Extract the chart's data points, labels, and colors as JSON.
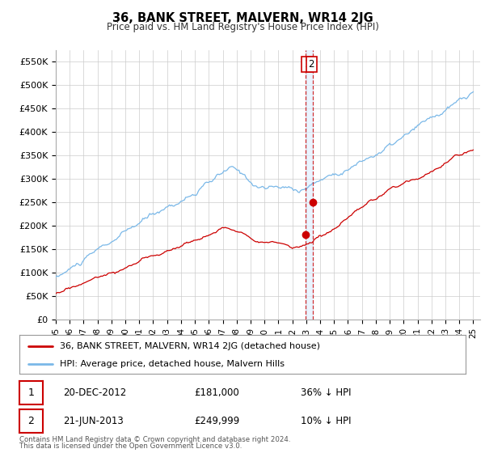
{
  "title": "36, BANK STREET, MALVERN, WR14 2JG",
  "subtitle": "Price paid vs. HM Land Registry's House Price Index (HPI)",
  "ylabel_ticks": [
    "£0",
    "£50K",
    "£100K",
    "£150K",
    "£200K",
    "£250K",
    "£300K",
    "£350K",
    "£400K",
    "£450K",
    "£500K",
    "£550K"
  ],
  "ytick_values": [
    0,
    50000,
    100000,
    150000,
    200000,
    250000,
    300000,
    350000,
    400000,
    450000,
    500000,
    550000
  ],
  "ylim": [
    0,
    575000
  ],
  "xlim_start": 1995.0,
  "xlim_end": 2025.5,
  "xtick_years": [
    1995,
    1996,
    1997,
    1998,
    1999,
    2000,
    2001,
    2002,
    2003,
    2004,
    2005,
    2006,
    2007,
    2008,
    2009,
    2010,
    2011,
    2012,
    2013,
    2014,
    2015,
    2016,
    2017,
    2018,
    2019,
    2020,
    2021,
    2022,
    2023,
    2024,
    2025
  ],
  "xtick_labels": [
    "95",
    "96",
    "97",
    "98",
    "99",
    "00",
    "01",
    "02",
    "03",
    "04",
    "05",
    "06",
    "07",
    "08",
    "09",
    "10",
    "11",
    "12",
    "13",
    "14",
    "15",
    "16",
    "17",
    "18",
    "19",
    "20",
    "21",
    "22",
    "23",
    "24",
    "25"
  ],
  "hpi_color": "#7ab8e8",
  "price_color": "#cc0000",
  "transaction1_x": 2012.97,
  "transaction1_y": 181000,
  "transaction2_x": 2013.47,
  "transaction2_y": 249999,
  "legend_red_label": "36, BANK STREET, MALVERN, WR14 2JG (detached house)",
  "legend_blue_label": "HPI: Average price, detached house, Malvern Hills",
  "table_rows": [
    {
      "num": "1",
      "date": "20-DEC-2012",
      "price": "£181,000",
      "info": "36% ↓ HPI"
    },
    {
      "num": "2",
      "date": "21-JUN-2013",
      "price": "£249,999",
      "info": "10% ↓ HPI"
    }
  ],
  "footer": "Contains HM Land Registry data © Crown copyright and database right 2024.\nThis data is licensed under the Open Government Licence v3.0.",
  "background_color": "#ffffff",
  "grid_color": "#cccccc",
  "shade_color": "#ddeeff"
}
